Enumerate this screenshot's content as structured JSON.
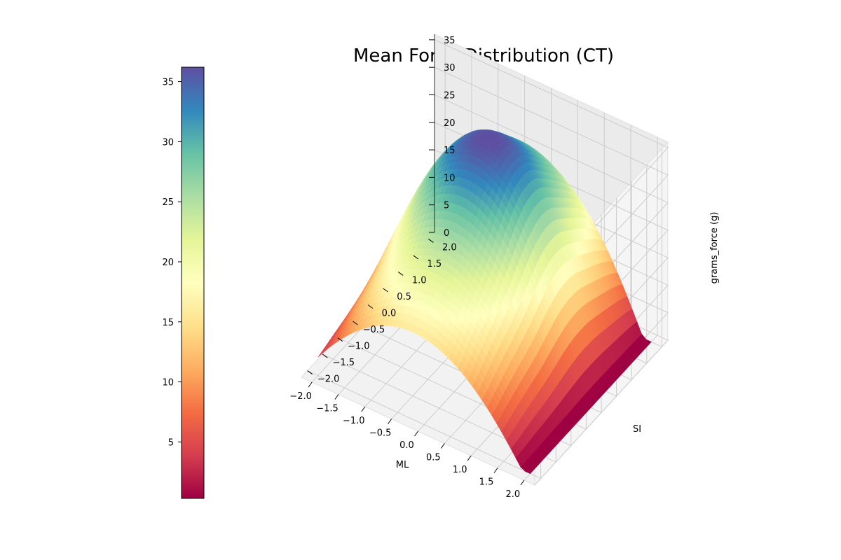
{
  "chart_data": {
    "type": "surface3d",
    "title": "Mean Force Distribution (CT)",
    "xlabel": "ML",
    "ylabel": "SI",
    "zlabel": "grams_force (g)",
    "xlim": [
      -2.0,
      2.0
    ],
    "ylim": [
      -2.0,
      2.0
    ],
    "zlim": [
      0,
      36
    ],
    "x_ticks": [
      "−2.0",
      "−1.5",
      "−1.0",
      "−0.5",
      "0.0",
      "0.5",
      "1.0",
      "1.5",
      "2.0"
    ],
    "y_ticks": [
      "−2.0",
      "−1.5",
      "−1.0",
      "−0.5",
      "0.0",
      "0.5",
      "1.0",
      "1.5",
      "2.0"
    ],
    "z_ticks": [
      "0",
      "5",
      "10",
      "15",
      "20",
      "25",
      "30",
      "35"
    ],
    "colormap": "Spectral",
    "colorbar": {
      "range": [
        0.3,
        36.2
      ],
      "ticks": [
        "5",
        "10",
        "15",
        "20",
        "25",
        "30",
        "35"
      ],
      "stops": [
        "#9e0142",
        "#d53e4f",
        "#f46d43",
        "#fdae61",
        "#fee08b",
        "#ffffbf",
        "#e6f598",
        "#abdda4",
        "#66c2a5",
        "#3288bd",
        "#5e4fa2"
      ]
    },
    "surface": {
      "description_values": "peak about 36 g near ML=-0.2, SI=0.7; about 16 g near SI=-2.0 at ML=-0.2; about 0 g at ML edges",
      "peak": 36,
      "peak_ml": -0.2,
      "peak_si": 0.7
    },
    "grid": true
  }
}
